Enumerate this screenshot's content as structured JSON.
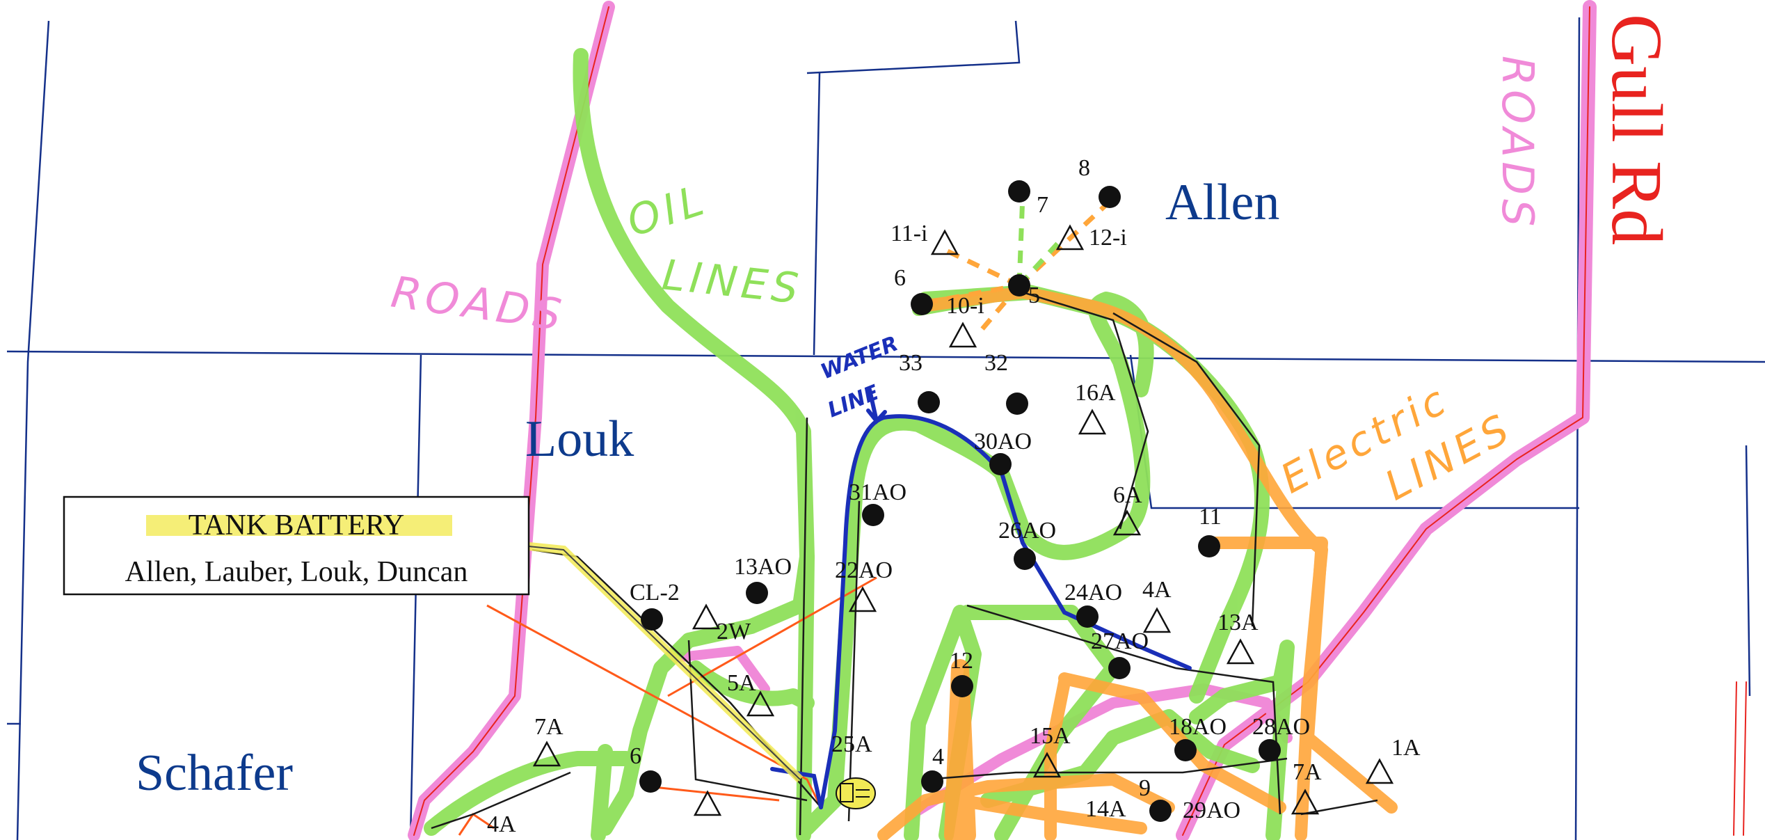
{
  "leases": {
    "allen": "Allen",
    "louk": "Louk",
    "schafer": "Schafer"
  },
  "road_name": "Gull Rd",
  "handwritten": {
    "roads_left": "ROADS",
    "roads_right": "ROADS",
    "oil_lines_1": "OIL",
    "oil_lines_2": "LINES",
    "water_line_1": "WATER",
    "water_line_2": "LINE",
    "electric_1": "Electric",
    "electric_2": "LINES"
  },
  "tank_battery": {
    "title": "TANK BATTERY",
    "subtitle": "Allen, Lauber, Louk, Duncan"
  },
  "wells": {
    "w7": "7",
    "w8": "8",
    "w11i": "11-i",
    "w12i": "12-i",
    "w6": "6",
    "w5": "5",
    "w10i": "10-i",
    "w33": "33",
    "w32": "32",
    "w16A": "16A",
    "w30AO": "30AO",
    "w31AO": "31AO",
    "w6A": "6A",
    "w11": "11",
    "w26AO": "26AO",
    "w13AO": "13AO",
    "w22AO": "22AO",
    "wCL2": "CL-2",
    "w2W": "2W",
    "w24AO": "24AO",
    "w4A": "4A",
    "w27AO": "27AO",
    "w13A": "13A",
    "w5A": "5A",
    "w12": "12",
    "w7A_left": "7A",
    "w6b": "6",
    "w15A": "15A",
    "w4": "4",
    "w18AO": "18AO",
    "w28AO": "28AO",
    "w1A": "1A",
    "w7A_right": "7A",
    "w9": "9",
    "w14A": "14A",
    "w29AO": "29AO",
    "w4A_bottom": "4A",
    "w25A": "25A"
  },
  "colors": {
    "roads": "#f08ad8",
    "road_lines": "#e8231f",
    "oil_lines": "#8fe05a",
    "electric_lines": "#ffa63a",
    "water_line": "#1a2fb8",
    "lease_boundaries": "#0d3a8c"
  }
}
